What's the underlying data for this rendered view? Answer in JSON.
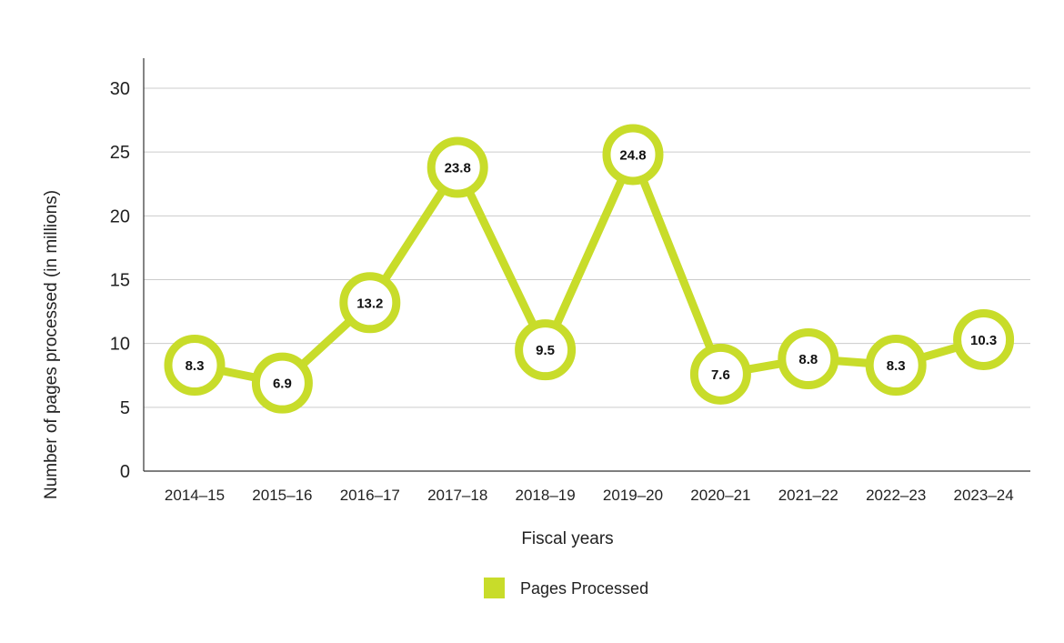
{
  "chart_data": {
    "type": "line",
    "title": "",
    "xlabel": "Fiscal years",
    "ylabel": "Number of pages processed (in millions)",
    "categories": [
      "2014–15",
      "2015–16",
      "2016–17",
      "2017–18",
      "2018–19",
      "2019–20",
      "2020–21",
      "2021–22",
      "2022–23",
      "2023–24"
    ],
    "series": [
      {
        "name": "Pages Processed",
        "values": [
          8.3,
          6.9,
          13.2,
          23.8,
          9.5,
          24.8,
          7.6,
          8.8,
          8.3,
          10.3
        ],
        "labels": [
          "8.3",
          "6.9",
          "13.2",
          "23.8",
          "9.5",
          "24.8",
          "7.6",
          "8.8",
          "8.3",
          "10.3"
        ]
      }
    ],
    "ylim": [
      0,
      30
    ],
    "yticks": [
      0,
      5,
      10,
      15,
      20,
      25,
      30
    ],
    "grid": true,
    "legend": "bottom-center",
    "colors": {
      "series": "#c8dc2a",
      "grid": "#cccccc",
      "axis": "#333333"
    }
  }
}
